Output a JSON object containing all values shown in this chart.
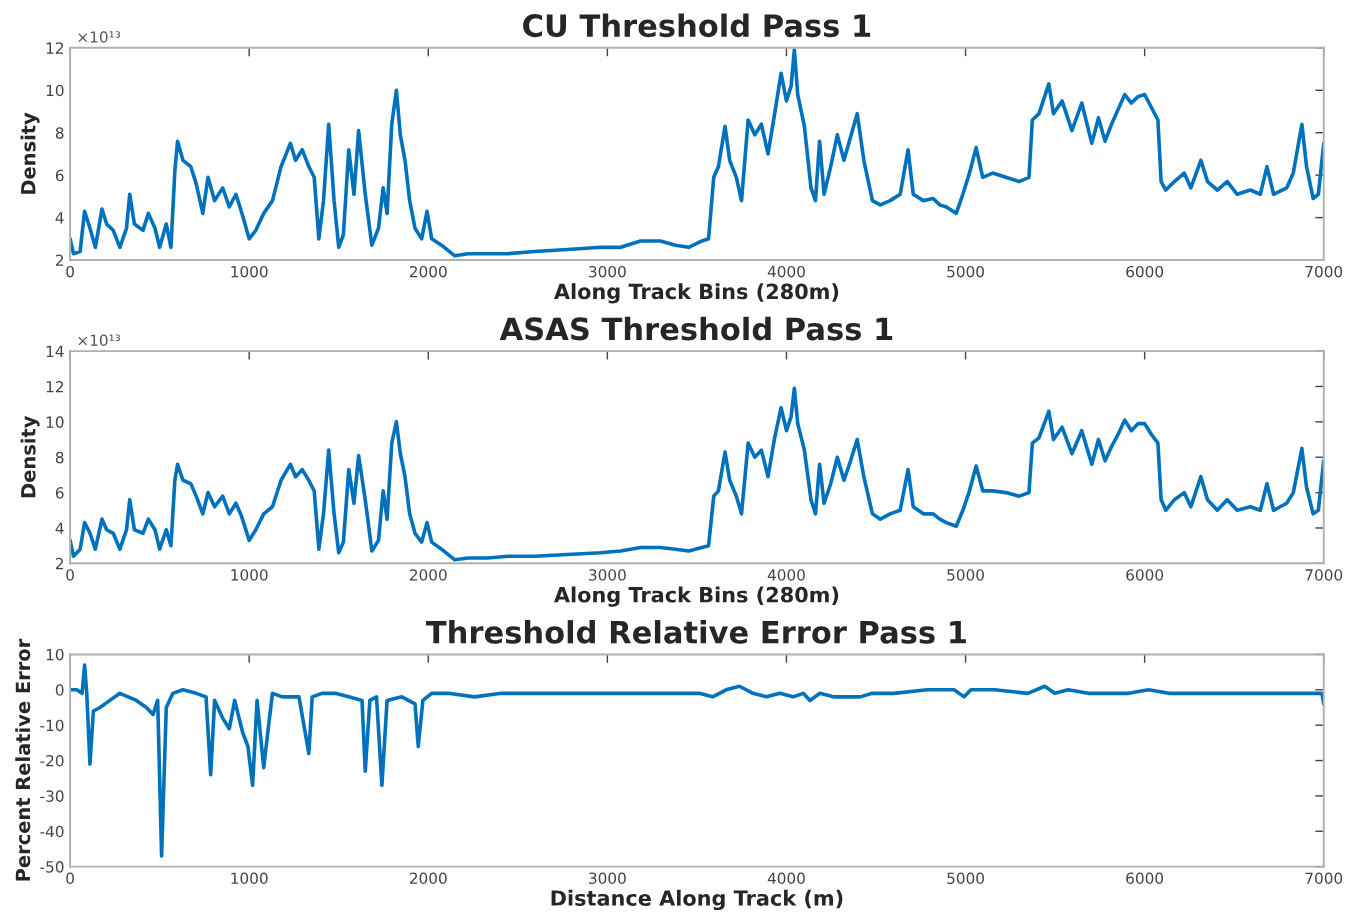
{
  "chart_data": [
    {
      "type": "line",
      "title": "CU Threshold Pass 1",
      "xlabel": "Along Track Bins (280m)",
      "ylabel": "Density",
      "annotations": [
        "×10¹³"
      ],
      "xlim": [
        0,
        7000
      ],
      "xticks": [
        0,
        1000,
        2000,
        3000,
        4000,
        5000,
        6000,
        7000
      ],
      "ylim": [
        2,
        12
      ],
      "yticks": [
        2,
        4,
        6,
        8,
        10,
        12
      ],
      "line_style": "solid",
      "x": [
        0,
        19,
        56,
        81,
        111,
        141,
        178,
        204,
        241,
        278,
        315,
        333,
        359,
        407,
        437,
        474,
        500,
        537,
        563,
        585,
        600,
        630,
        674,
        704,
        741,
        770,
        807,
        852,
        889,
        926,
        956,
        1000,
        1037,
        1081,
        1130,
        1178,
        1230,
        1259,
        1296,
        1333,
        1363,
        1389,
        1415,
        1444,
        1474,
        1500,
        1526,
        1556,
        1585,
        1611,
        1648,
        1685,
        1722,
        1748,
        1770,
        1796,
        1822,
        1844,
        1870,
        1896,
        1926,
        1963,
        1993,
        2019,
        2074,
        2148,
        2222,
        2333,
        2444,
        2593,
        2778,
        2963,
        3074,
        3185,
        3296,
        3380,
        3454,
        3528,
        3565,
        3594,
        3620,
        3657,
        3683,
        3720,
        3749,
        3786,
        3823,
        3860,
        3897,
        3934,
        3970,
        4000,
        4026,
        4044,
        4063,
        4100,
        4137,
        4162,
        4185,
        4210,
        4247,
        4284,
        4321,
        4358,
        4395,
        4432,
        4480,
        4524,
        4579,
        4635,
        4679,
        4708,
        4764,
        4819,
        4856,
        4893,
        4948,
        4985,
        5022,
        5059,
        5096,
        5151,
        5225,
        5299,
        5354,
        5373,
        5410,
        5465,
        5491,
        5539,
        5594,
        5649,
        5705,
        5742,
        5779,
        5815,
        5852,
        5889,
        5926,
        5963,
        6000,
        6037,
        6074,
        6092,
        6118,
        6166,
        6221,
        6258,
        6314,
        6351,
        6406,
        6461,
        6517,
        6590,
        6646,
        6683,
        6720,
        6793,
        6830,
        6878,
        6904,
        6941,
        6970,
        7000
      ],
      "series": [
        {
          "color": "#0072bd",
          "values": [
            3.0,
            2.3,
            2.4,
            4.3,
            3.5,
            2.6,
            4.4,
            3.7,
            3.4,
            2.6,
            3.5,
            5.1,
            3.7,
            3.4,
            4.2,
            3.5,
            2.6,
            3.7,
            2.6,
            6.2,
            7.6,
            6.7,
            6.4,
            5.6,
            4.2,
            5.9,
            4.8,
            5.4,
            4.5,
            5.1,
            4.3,
            3.0,
            3.4,
            4.2,
            4.8,
            6.4,
            7.5,
            6.7,
            7.2,
            6.4,
            5.9,
            3.0,
            4.8,
            8.4,
            4.8,
            2.6,
            3.2,
            7.2,
            5.1,
            8.1,
            5.1,
            2.7,
            3.5,
            5.4,
            4.2,
            8.4,
            10.0,
            7.9,
            6.7,
            4.8,
            3.5,
            3.0,
            4.3,
            3.0,
            2.7,
            2.2,
            2.3,
            2.3,
            2.3,
            2.4,
            2.5,
            2.6,
            2.6,
            2.9,
            2.9,
            2.7,
            2.6,
            2.9,
            3.0,
            5.9,
            6.4,
            8.3,
            6.7,
            5.9,
            4.8,
            8.6,
            7.9,
            8.4,
            7.0,
            8.9,
            10.8,
            9.5,
            10.2,
            11.9,
            9.8,
            8.3,
            5.4,
            4.8,
            7.6,
            5.1,
            6.4,
            7.9,
            6.7,
            7.8,
            8.9,
            6.7,
            4.8,
            4.6,
            4.8,
            5.1,
            7.2,
            5.1,
            4.8,
            4.9,
            4.6,
            4.5,
            4.2,
            5.1,
            6.1,
            7.3,
            5.9,
            6.1,
            5.9,
            5.7,
            5.9,
            8.6,
            8.9,
            10.3,
            8.9,
            9.5,
            8.1,
            9.4,
            7.5,
            8.7,
            7.6,
            8.4,
            9.1,
            9.8,
            9.4,
            9.7,
            9.8,
            9.2,
            8.6,
            5.7,
            5.3,
            5.7,
            6.1,
            5.4,
            6.7,
            5.7,
            5.3,
            5.7,
            5.1,
            5.3,
            5.1,
            6.4,
            5.1,
            5.4,
            6.1,
            8.4,
            6.4,
            4.9,
            5.1,
            7.5
          ]
        }
      ]
    },
    {
      "type": "line",
      "title": "ASAS Threshold Pass 1",
      "xlabel": "Along Track Bins (280m)",
      "ylabel": "Density",
      "annotations": [
        "×10¹³"
      ],
      "xlim": [
        0,
        7000
      ],
      "xticks": [
        0,
        1000,
        2000,
        3000,
        4000,
        5000,
        6000,
        7000
      ],
      "ylim": [
        2,
        14
      ],
      "yticks": [
        2,
        4,
        6,
        8,
        10,
        12,
        14
      ],
      "line_style": "solid",
      "x": [
        0,
        19,
        56,
        81,
        111,
        141,
        178,
        204,
        241,
        278,
        315,
        333,
        359,
        407,
        437,
        474,
        500,
        537,
        563,
        585,
        600,
        630,
        674,
        704,
        741,
        770,
        807,
        852,
        889,
        926,
        956,
        1000,
        1037,
        1081,
        1130,
        1178,
        1230,
        1259,
        1296,
        1333,
        1363,
        1389,
        1415,
        1444,
        1474,
        1500,
        1526,
        1556,
        1585,
        1611,
        1648,
        1685,
        1722,
        1748,
        1770,
        1796,
        1822,
        1844,
        1870,
        1896,
        1926,
        1963,
        1993,
        2019,
        2074,
        2148,
        2222,
        2333,
        2444,
        2593,
        2778,
        2963,
        3074,
        3185,
        3296,
        3380,
        3454,
        3528,
        3565,
        3594,
        3620,
        3657,
        3683,
        3720,
        3749,
        3786,
        3823,
        3860,
        3897,
        3934,
        3970,
        4000,
        4026,
        4044,
        4063,
        4100,
        4137,
        4162,
        4185,
        4210,
        4247,
        4284,
        4321,
        4358,
        4395,
        4432,
        4480,
        4524,
        4579,
        4635,
        4679,
        4708,
        4764,
        4819,
        4856,
        4893,
        4948,
        4985,
        5022,
        5059,
        5096,
        5151,
        5225,
        5299,
        5354,
        5373,
        5410,
        5465,
        5491,
        5539,
        5594,
        5649,
        5705,
        5742,
        5779,
        5815,
        5852,
        5889,
        5926,
        5963,
        6000,
        6037,
        6074,
        6092,
        6118,
        6166,
        6221,
        6258,
        6314,
        6351,
        6406,
        6461,
        6517,
        6590,
        6646,
        6683,
        6720,
        6793,
        6830,
        6878,
        6904,
        6941,
        6970,
        7000
      ],
      "series": [
        {
          "color": "#0072bd",
          "values": [
            3.3,
            2.4,
            2.8,
            4.3,
            3.7,
            2.8,
            4.5,
            3.9,
            3.7,
            2.8,
            3.9,
            5.6,
            3.9,
            3.7,
            4.5,
            3.9,
            2.8,
            3.9,
            3.0,
            6.7,
            7.6,
            6.7,
            6.5,
            5.8,
            4.8,
            6.0,
            5.2,
            5.8,
            4.8,
            5.4,
            4.7,
            3.3,
            3.9,
            4.8,
            5.2,
            6.7,
            7.6,
            6.9,
            7.3,
            6.7,
            6.1,
            2.8,
            4.8,
            8.4,
            4.8,
            2.6,
            3.2,
            7.3,
            5.4,
            8.1,
            5.6,
            2.7,
            3.3,
            6.1,
            4.5,
            8.8,
            10.0,
            8.2,
            6.9,
            4.8,
            3.7,
            3.2,
            4.3,
            3.2,
            2.8,
            2.2,
            2.3,
            2.3,
            2.4,
            2.4,
            2.5,
            2.6,
            2.7,
            2.9,
            2.9,
            2.8,
            2.7,
            2.9,
            3.0,
            5.8,
            6.1,
            8.3,
            6.7,
            5.8,
            4.8,
            8.8,
            8.0,
            8.4,
            6.9,
            9.1,
            10.8,
            9.5,
            10.3,
            11.9,
            9.9,
            8.4,
            5.6,
            4.8,
            7.6,
            5.4,
            6.5,
            8.0,
            6.7,
            7.8,
            9.0,
            6.9,
            4.8,
            4.5,
            4.8,
            5.0,
            7.3,
            5.2,
            4.8,
            4.8,
            4.5,
            4.3,
            4.1,
            5.0,
            6.1,
            7.5,
            6.1,
            6.1,
            6.0,
            5.8,
            6.0,
            8.8,
            9.1,
            10.6,
            9.0,
            9.7,
            8.2,
            9.5,
            7.6,
            9.0,
            7.8,
            8.6,
            9.3,
            10.1,
            9.5,
            9.9,
            9.9,
            9.3,
            8.8,
            5.6,
            5.0,
            5.6,
            6.0,
            5.2,
            6.9,
            5.6,
            5.0,
            5.6,
            5.0,
            5.2,
            5.0,
            6.5,
            5.0,
            5.4,
            6.0,
            8.5,
            6.3,
            4.8,
            5.0,
            7.8
          ]
        }
      ]
    },
    {
      "type": "line",
      "title": "Threshold Relative Error Pass 1",
      "xlabel": "Distance Along Track (m)",
      "ylabel": "Percent Relative Error",
      "xlim": [
        0,
        7000
      ],
      "xticks": [
        0,
        1000,
        2000,
        3000,
        4000,
        5000,
        6000,
        7000
      ],
      "ylim": [
        -50,
        10
      ],
      "yticks": [
        -50,
        -40,
        -30,
        -20,
        -10,
        0,
        10
      ],
      "line_style": "solid",
      "x": [
        0,
        37,
        67,
        81,
        93,
        111,
        130,
        167,
        222,
        278,
        370,
        426,
        463,
        489,
        511,
        537,
        574,
        630,
        704,
        759,
        785,
        807,
        852,
        889,
        919,
        963,
        993,
        1019,
        1044,
        1081,
        1111,
        1130,
        1185,
        1278,
        1333,
        1352,
        1407,
        1481,
        1556,
        1630,
        1648,
        1674,
        1711,
        1741,
        1770,
        1852,
        1926,
        1944,
        1970,
        2019,
        2111,
        2259,
        2407,
        2593,
        2778,
        2963,
        3148,
        3333,
        3513,
        3588,
        3663,
        3738,
        3813,
        3888,
        3963,
        4037,
        4094,
        4131,
        4187,
        4262,
        4337,
        4412,
        4479,
        4599,
        4786,
        4936,
        4992,
        5030,
        5161,
        5348,
        5442,
        5498,
        5573,
        5685,
        5798,
        5910,
        6022,
        6135,
        6285,
        6659,
        6990,
        7000
      ],
      "series": [
        {
          "color": "#0072bd",
          "values": [
            0,
            0,
            -1,
            7,
            -1,
            -21,
            -6,
            -5,
            -3,
            -1,
            -3,
            -5,
            -7,
            -3,
            -47,
            -5,
            -1,
            0,
            -1,
            -2,
            -24,
            -3,
            -8,
            -11,
            -3,
            -12,
            -16,
            -27,
            -3,
            -22,
            -9,
            -1,
            -2,
            -2,
            -18,
            -2,
            -1,
            -1,
            -2,
            -3,
            -23,
            -3,
            -2,
            -27,
            -3,
            -2,
            -4,
            -16,
            -3,
            -1,
            -1,
            -2,
            -1,
            -1,
            -1,
            -1,
            -1,
            -1,
            -1,
            -2,
            0,
            1,
            -1,
            -2,
            -1,
            -2,
            -1,
            -3,
            -1,
            -2,
            -2,
            -2,
            -1,
            -1,
            0,
            0,
            -2,
            0,
            0,
            -1,
            1,
            -1,
            0,
            -1,
            -1,
            -1,
            0,
            -1,
            -1,
            -1,
            -1,
            -4
          ]
        }
      ]
    }
  ]
}
